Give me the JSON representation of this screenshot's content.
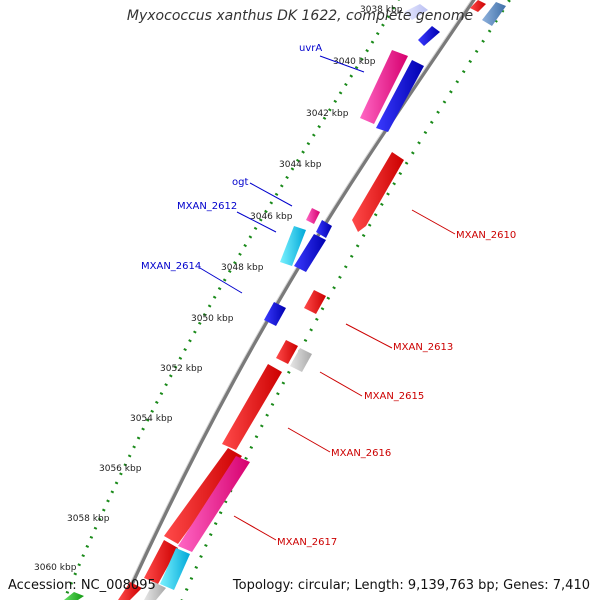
{
  "title": "Myxococcus xanthus DK 1622, complete genome",
  "footer": {
    "accession": "Accession: NC_008095",
    "summary": "Topology: circular; Length: 9,139,763 bp; Genes: 7,410"
  },
  "colors": {
    "backbone": "#7a7a7a",
    "tick_green": "#1a8a1a",
    "forward_label": "#0000cc",
    "reverse_label": "#cc0000"
  },
  "ticks": [
    "3038 kbp",
    "3040 kbp",
    "3042 kbp",
    "3044 kbp",
    "3046 kbp",
    "3048 kbp",
    "3050 kbp",
    "3052 kbp",
    "3054 kbp",
    "3056 kbp",
    "3058 kbp",
    "3060 kbp"
  ],
  "labels_forward": [
    "uvrA",
    "ogt",
    "MXAN_2612",
    "MXAN_2614"
  ],
  "labels_reverse": [
    "MXAN_2610",
    "MXAN_2613",
    "MXAN_2615",
    "MXAN_2616",
    "MXAN_2617"
  ]
}
